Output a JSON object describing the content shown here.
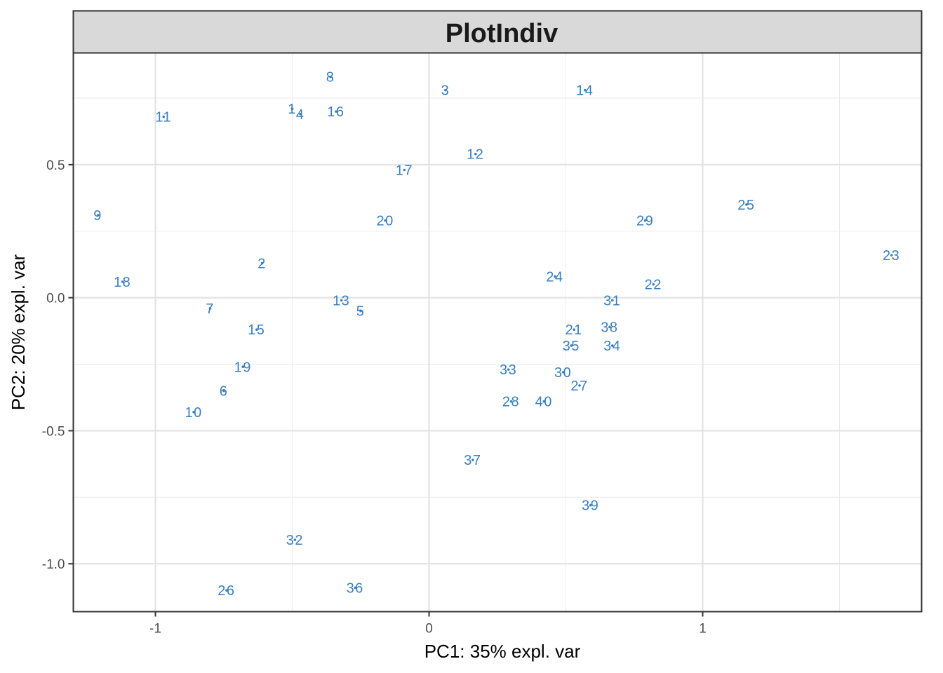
{
  "chart_data": {
    "type": "scatter",
    "title": "PlotIndiv",
    "xlabel": "PC1: 35% expl. var",
    "ylabel": "PC2: 20% expl. var",
    "xlim": [
      -1.3,
      1.8
    ],
    "ylim": [
      -1.18,
      0.92
    ],
    "x_ticks": [
      -1,
      0,
      1
    ],
    "x_tick_labels": [
      "-1",
      "0",
      "1"
    ],
    "y_ticks": [
      -1.0,
      -0.5,
      0.0,
      0.5
    ],
    "y_tick_labels": [
      "-1.0",
      "-0.5",
      "0.0",
      "0.5"
    ],
    "grid": true,
    "point_color": "#3a7fc1",
    "points": [
      {
        "label": "1",
        "x": -0.5,
        "y": 0.71
      },
      {
        "label": "2",
        "x": -0.61,
        "y": 0.13
      },
      {
        "label": "3",
        "x": 0.06,
        "y": 0.78
      },
      {
        "label": "4",
        "x": -0.47,
        "y": 0.69
      },
      {
        "label": "5",
        "x": -0.25,
        "y": -0.05
      },
      {
        "label": "6",
        "x": -0.75,
        "y": -0.35
      },
      {
        "label": "7",
        "x": -0.8,
        "y": -0.04
      },
      {
        "label": "8",
        "x": -0.36,
        "y": 0.83
      },
      {
        "label": "9",
        "x": -1.21,
        "y": 0.31
      },
      {
        "label": "10",
        "x": -0.86,
        "y": -0.43
      },
      {
        "label": "11",
        "x": -0.97,
        "y": 0.68
      },
      {
        "label": "12",
        "x": 0.17,
        "y": 0.54
      },
      {
        "label": "13",
        "x": -0.32,
        "y": -0.01
      },
      {
        "label": "14",
        "x": 0.57,
        "y": 0.78
      },
      {
        "label": "15",
        "x": -0.63,
        "y": -0.12
      },
      {
        "label": "16",
        "x": -0.34,
        "y": 0.7
      },
      {
        "label": "17",
        "x": -0.09,
        "y": 0.48
      },
      {
        "label": "18",
        "x": -1.12,
        "y": 0.06
      },
      {
        "label": "19",
        "x": -0.68,
        "y": -0.26
      },
      {
        "label": "20",
        "x": -0.16,
        "y": 0.29
      },
      {
        "label": "21",
        "x": 0.53,
        "y": -0.12
      },
      {
        "label": "22",
        "x": 0.82,
        "y": 0.05
      },
      {
        "label": "23",
        "x": 1.69,
        "y": 0.16
      },
      {
        "label": "24",
        "x": 0.46,
        "y": 0.08
      },
      {
        "label": "25",
        "x": 1.16,
        "y": 0.35
      },
      {
        "label": "26",
        "x": -0.74,
        "y": -1.1
      },
      {
        "label": "27",
        "x": 0.55,
        "y": -0.33
      },
      {
        "label": "28",
        "x": 0.3,
        "y": -0.39
      },
      {
        "label": "29",
        "x": 0.79,
        "y": 0.29
      },
      {
        "label": "30",
        "x": 0.49,
        "y": -0.28
      },
      {
        "label": "31",
        "x": 0.67,
        "y": -0.01
      },
      {
        "label": "32",
        "x": -0.49,
        "y": -0.91
      },
      {
        "label": "33",
        "x": 0.29,
        "y": -0.27
      },
      {
        "label": "34",
        "x": 0.67,
        "y": -0.18
      },
      {
        "label": "35",
        "x": 0.52,
        "y": -0.18
      },
      {
        "label": "36",
        "x": -0.27,
        "y": -1.09
      },
      {
        "label": "37",
        "x": 0.16,
        "y": -0.61
      },
      {
        "label": "38",
        "x": 0.66,
        "y": -0.11
      },
      {
        "label": "39",
        "x": 0.59,
        "y": -0.78
      },
      {
        "label": "40",
        "x": 0.42,
        "y": -0.39
      }
    ]
  }
}
